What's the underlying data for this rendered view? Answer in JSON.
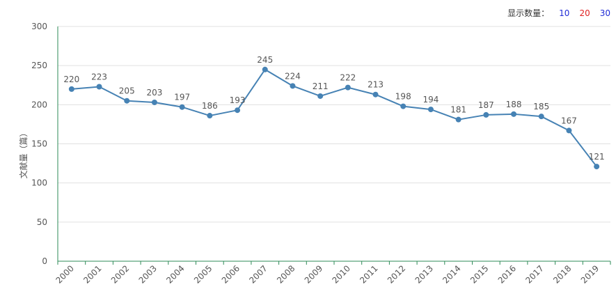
{
  "display_count": {
    "label": "显示数量：",
    "options": [
      "10",
      "20",
      "30"
    ]
  },
  "chart_data": {
    "type": "line",
    "title": "",
    "xlabel": "",
    "ylabel": "文献量（篇）",
    "ylim": [
      0,
      300
    ],
    "yticks": [
      0,
      50,
      100,
      150,
      200,
      250,
      300
    ],
    "x": [
      "2000",
      "2001",
      "2002",
      "2003",
      "2004",
      "2005",
      "2006",
      "2007",
      "2008",
      "2009",
      "2010",
      "2011",
      "2012",
      "2013",
      "2014",
      "2015",
      "2016",
      "2017",
      "2018",
      "2019"
    ],
    "series": [
      {
        "values": [
          220,
          223,
          205,
          203,
          197,
          186,
          193,
          245,
          224,
          211,
          222,
          213,
          198,
          194,
          181,
          187,
          188,
          185,
          167,
          121
        ],
        "color": "#4682b4"
      }
    ],
    "grid": true,
    "data_labels": true,
    "axis_color": "#2e8b57",
    "grid_color": "#e0e0e0",
    "label_color": "#555555",
    "option_colors": [
      "#1f2bd6",
      "#e02020",
      "#1f2bd6"
    ]
  }
}
